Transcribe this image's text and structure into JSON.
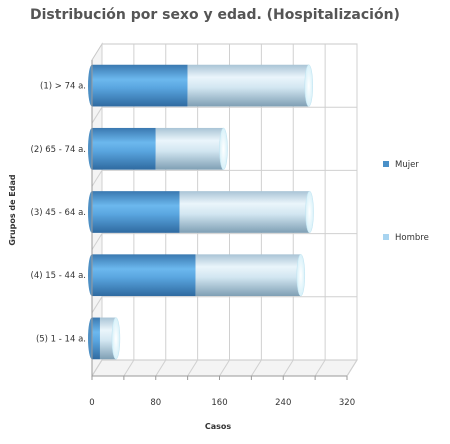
{
  "chart_data": {
    "type": "bar",
    "orientation": "horizontal",
    "stacked": true,
    "style": "3d-cylinder",
    "title": "Distribución por sexo y edad. (Hospitalización)",
    "xlabel": "Casos",
    "ylabel": "Grupos de Edad",
    "xlim": [
      0,
      320
    ],
    "xticks": [
      0,
      80,
      160,
      240,
      320
    ],
    "grid": true,
    "legend_position": "right",
    "categories": [
      "(1) > 74 a.",
      "(2) 65 - 74 a.",
      "(3) 45 - 64 a.",
      "(4) 15 - 44 a.",
      "(5) 1 - 14 a."
    ],
    "series": [
      {
        "name": "Mujer",
        "color": "#4a90c8",
        "values": [
          120,
          80,
          110,
          130,
          10
        ]
      },
      {
        "name": "Hombre",
        "color": "#a8d4f0",
        "values": [
          152,
          85,
          163,
          132,
          20
        ]
      }
    ]
  }
}
